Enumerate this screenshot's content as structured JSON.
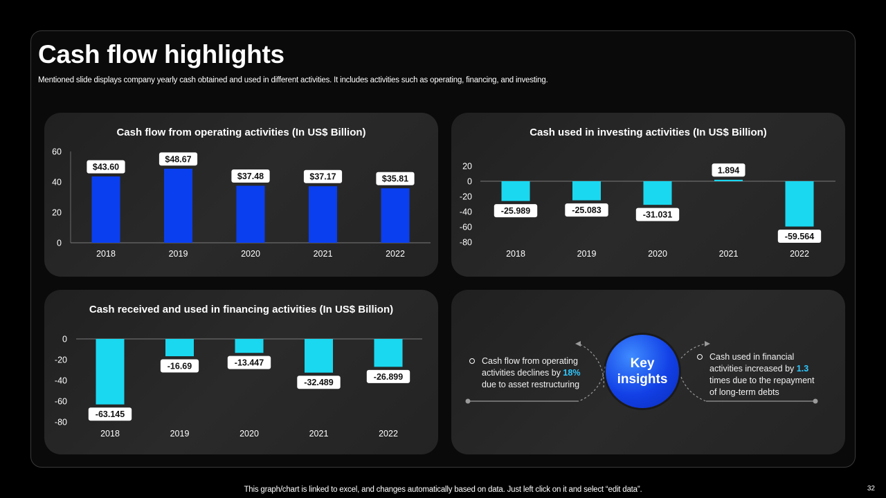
{
  "slide": {
    "title": "Cash flow highlights",
    "subtitle": "Mentioned slide displays company yearly cash obtained and used in different activities. It includes activities such as operating, financing, and investing.",
    "footer": "This graph/chart is linked to excel, and changes automatically based on data. Just left click on it and select “edit data”.",
    "page_number": "32"
  },
  "colors": {
    "accent_blue": "#0a3ff0",
    "accent_cyan": "#1ad8f0",
    "highlight": "#2fc8ff"
  },
  "chart_data": [
    {
      "id": "op",
      "type": "bar",
      "title": "Cash flow from operating activities (In US$ Billion)",
      "categories": [
        "2018",
        "2019",
        "2020",
        "2021",
        "2022"
      ],
      "values": [
        43.6,
        48.67,
        37.48,
        37.17,
        35.81
      ],
      "labels": [
        "$43.60",
        "$48.67",
        "$37.48",
        "$37.17",
        "$35.81"
      ],
      "yticks": [
        "60",
        "40",
        "20",
        "0"
      ],
      "ylim": [
        0,
        60
      ],
      "color": "#0a3ff0"
    },
    {
      "id": "inv",
      "type": "bar",
      "title": "Cash used in investing activities (In US$ Billion)",
      "categories": [
        "2018",
        "2019",
        "2020",
        "2021",
        "2022"
      ],
      "values": [
        -25.989,
        -25.083,
        -31.031,
        1.894,
        -59.564
      ],
      "labels": [
        "-25.989",
        "-25.083",
        "-31.031",
        "1.894",
        "-59.564"
      ],
      "yticks": [
        "20",
        "0",
        "-20",
        "-40",
        "-60",
        "-80"
      ],
      "ylim": [
        -80,
        20
      ],
      "color": "#1ad8f0"
    },
    {
      "id": "fin",
      "type": "bar",
      "title": "Cash received and used in financing activities (In US$ Billion)",
      "categories": [
        "2018",
        "2019",
        "2020",
        "2021",
        "2022"
      ],
      "values": [
        -63.145,
        -16.69,
        -13.447,
        -32.489,
        -26.899
      ],
      "labels": [
        "-63.145",
        "-16.69",
        "-13.447",
        "-32.489",
        "-26.899"
      ],
      "yticks": [
        "0",
        "-20",
        "-40",
        "-60",
        "-80"
      ],
      "ylim": [
        -80,
        0
      ],
      "color": "#1ad8f0"
    }
  ],
  "insights": {
    "center_label": "Key insights",
    "left": {
      "pre": "Cash flow from operating activities declines by ",
      "highlight": "18%",
      "post": " due to asset restructuring"
    },
    "right": {
      "pre": "Cash used in financial activities increased by ",
      "highlight": "1.3",
      "post": " times due to the repayment of long-term debts"
    }
  }
}
